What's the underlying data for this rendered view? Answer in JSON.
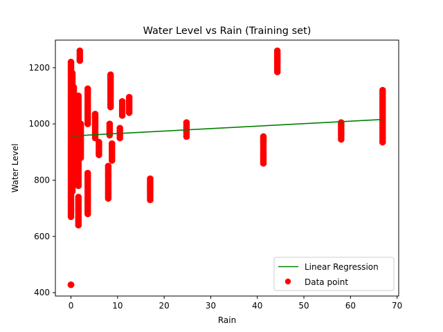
{
  "chart_data": {
    "type": "scatter",
    "title": "Water Level vs Rain (Training set)",
    "xlabel": "Rain",
    "ylabel": "Water Level",
    "xlim": [
      -3.35,
      70.35
    ],
    "ylim": [
      388,
      1298
    ],
    "xticks": [
      0,
      10,
      20,
      30,
      40,
      50,
      60,
      70
    ],
    "yticks": [
      400,
      600,
      800,
      1000,
      1200
    ],
    "grid": false,
    "legend_position": "lower-right",
    "series": [
      {
        "name": "Linear Regression",
        "kind": "line",
        "color": "#008000",
        "x": [
          0,
          67
        ],
        "y": [
          957,
          1016
        ]
      },
      {
        "name": "Data point",
        "kind": "scatter",
        "color": "#ff0000",
        "groups": [
          {
            "x": 0.0,
            "y_min": 670,
            "y_max": 1220
          },
          {
            "x": 0.0,
            "y_min": 428,
            "y_max": 428
          },
          {
            "x": 0.3,
            "y_min": 760,
            "y_max": 1180
          },
          {
            "x": 0.6,
            "y_min": 800,
            "y_max": 1130
          },
          {
            "x": 1.0,
            "y_min": 820,
            "y_max": 1100
          },
          {
            "x": 1.3,
            "y_min": 880,
            "y_max": 1080
          },
          {
            "x": 1.6,
            "y_min": 780,
            "y_max": 1100
          },
          {
            "x": 1.6,
            "y_min": 640,
            "y_max": 740
          },
          {
            "x": 1.9,
            "y_min": 1225,
            "y_max": 1260
          },
          {
            "x": 2.1,
            "y_min": 880,
            "y_max": 1000
          },
          {
            "x": 3.6,
            "y_min": 1000,
            "y_max": 1125
          },
          {
            "x": 3.6,
            "y_min": 680,
            "y_max": 825
          },
          {
            "x": 5.2,
            "y_min": 950,
            "y_max": 1035
          },
          {
            "x": 6.0,
            "y_min": 890,
            "y_max": 935
          },
          {
            "x": 8.0,
            "y_min": 735,
            "y_max": 850
          },
          {
            "x": 8.3,
            "y_min": 960,
            "y_max": 1000
          },
          {
            "x": 8.5,
            "y_min": 1060,
            "y_max": 1175
          },
          {
            "x": 8.8,
            "y_min": 870,
            "y_max": 930
          },
          {
            "x": 10.5,
            "y_min": 950,
            "y_max": 985
          },
          {
            "x": 11.0,
            "y_min": 1030,
            "y_max": 1080
          },
          {
            "x": 12.5,
            "y_min": 1040,
            "y_max": 1095
          },
          {
            "x": 17.0,
            "y_min": 730,
            "y_max": 805
          },
          {
            "x": 24.8,
            "y_min": 955,
            "y_max": 1005
          },
          {
            "x": 41.3,
            "y_min": 860,
            "y_max": 955
          },
          {
            "x": 44.3,
            "y_min": 1185,
            "y_max": 1260
          },
          {
            "x": 58.0,
            "y_min": 945,
            "y_max": 1005
          },
          {
            "x": 66.9,
            "y_min": 935,
            "y_max": 1120
          }
        ]
      }
    ]
  }
}
